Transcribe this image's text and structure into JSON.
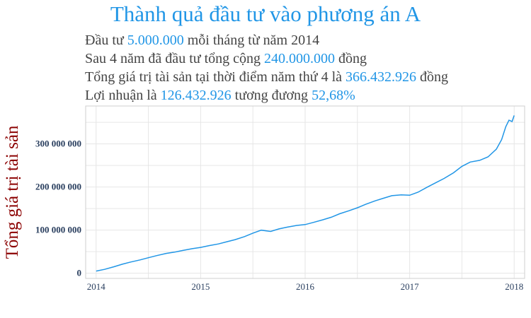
{
  "header": {
    "title": "Thành quả đầu tư vào phương án A",
    "line1": {
      "prefix": "Đầu tư ",
      "amount": "5.000.000",
      "suffix": " mỗi tháng từ năm 2014"
    },
    "line2": {
      "prefix": "Sau 4 năm đã đầu tư tổng cộng ",
      "amount": "240.000.000",
      "suffix": " đồng"
    },
    "line3": {
      "prefix": "Tổng giá trị tài sản tại thời điểm năm thứ 4 là ",
      "amount": "366.432.926",
      "suffix": " đồng"
    },
    "line4": {
      "prefix": "Lợi nhuận là ",
      "amount": "126.432.926",
      "mid": " tương đương ",
      "pct": "52,68%"
    }
  },
  "colors": {
    "accent": "#2196e6",
    "ylabel": "#8b0000",
    "text": "#444444",
    "tick": "#2a3f5f",
    "grid": "#e6e6e6"
  },
  "chart_data": {
    "type": "line",
    "title": "",
    "xlabel": "",
    "ylabel": "Tổng giá trị tài sản",
    "xlim": [
      2013.9,
      2018.1
    ],
    "ylim": [
      -12000000,
      388000000
    ],
    "grid": true,
    "x_ticks": [
      2014,
      2015,
      2016,
      2017,
      2018
    ],
    "x_tick_labels": [
      "2014",
      "2015",
      "2016",
      "2017",
      "2018"
    ],
    "y_ticks": [
      0,
      100000000,
      200000000,
      300000000
    ],
    "y_tick_labels": [
      "0",
      "100 000 000",
      "200 000 000",
      "300 000 000"
    ],
    "series": [
      {
        "color": "#2196e6",
        "x": [
          2014.0,
          2014.08,
          2014.17,
          2014.25,
          2014.33,
          2014.42,
          2014.5,
          2014.58,
          2014.67,
          2014.75,
          2014.83,
          2014.92,
          2015.0,
          2015.08,
          2015.17,
          2015.25,
          2015.33,
          2015.42,
          2015.5,
          2015.58,
          2015.67,
          2015.75,
          2015.83,
          2015.92,
          2016.0,
          2016.08,
          2016.17,
          2016.25,
          2016.33,
          2016.42,
          2016.5,
          2016.58,
          2016.67,
          2016.75,
          2016.83,
          2016.92,
          2017.0,
          2017.08,
          2017.17,
          2017.25,
          2017.33,
          2017.42,
          2017.5,
          2017.58,
          2017.67,
          2017.75,
          2017.83,
          2017.88,
          2017.92,
          2017.95,
          2017.98,
          2018.0
        ],
        "y": [
          5000000,
          9000000,
          15000000,
          21000000,
          26000000,
          31000000,
          36000000,
          41000000,
          46000000,
          49000000,
          53000000,
          57000000,
          60000000,
          64000000,
          68000000,
          73000000,
          78000000,
          85000000,
          93000000,
          100000000,
          97000000,
          103000000,
          107000000,
          111000000,
          113000000,
          118000000,
          124000000,
          130000000,
          138000000,
          145000000,
          152000000,
          160000000,
          168000000,
          174000000,
          180000000,
          182000000,
          181000000,
          188000000,
          200000000,
          210000000,
          220000000,
          233000000,
          248000000,
          258000000,
          262000000,
          270000000,
          288000000,
          310000000,
          340000000,
          355000000,
          352000000,
          366000000
        ]
      }
    ]
  }
}
